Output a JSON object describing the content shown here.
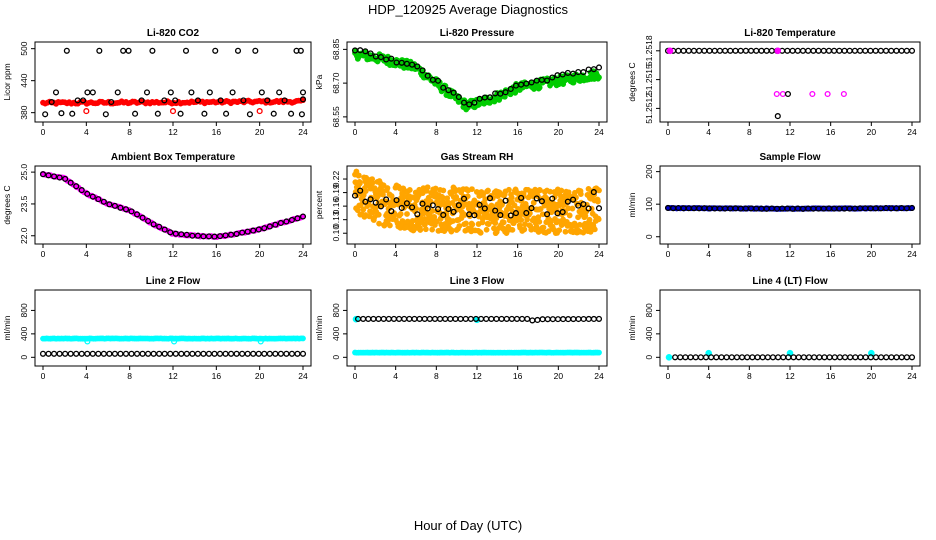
{
  "title": "HDP_120925  Average Diagnostics",
  "x_axis_label": "Hour of Day (UTC)",
  "colors": {
    "black": "#000000",
    "red": "#ff0000",
    "magenta": "#ff00ff",
    "green": "#00cc00",
    "orange": "#ffa500",
    "blue": "#0000cc",
    "cyan": "#00ffff"
  },
  "chart_data": [
    {
      "type": "scatter",
      "title": "Li-820 CO2",
      "ylabel": "Licor ppm",
      "xlim": [
        0,
        24
      ],
      "ylim": [
        370,
        505
      ],
      "xticks": [
        0,
        4,
        8,
        12,
        16,
        20,
        24
      ],
      "yticks": [
        380,
        440,
        500
      ],
      "series": [
        {
          "color": "red",
          "filled": true,
          "dense": true,
          "x_start": 0,
          "x_end": 24,
          "count": 120,
          "base": 400,
          "noise": 2.5,
          "trend": [
            [
              0,
              398
            ],
            [
              24,
              401
            ]
          ]
        },
        {
          "color": "red",
          "filled": false,
          "points": [
            [
              4,
              383
            ],
            [
              12,
              383
            ],
            [
              20,
              383
            ]
          ]
        },
        {
          "color": "black",
          "filled": false,
          "points": [
            [
              0.2,
              377
            ],
            [
              0.8,
              400
            ],
            [
              1.2,
              418
            ],
            [
              1.7,
              379
            ],
            [
              2.2,
              496
            ],
            [
              2.7,
              378
            ],
            [
              3.2,
              403
            ],
            [
              3.7,
              403
            ],
            [
              4.1,
              418
            ],
            [
              4.6,
              418
            ],
            [
              5.2,
              496
            ],
            [
              5.8,
              377
            ],
            [
              6.3,
              400
            ],
            [
              6.9,
              418
            ],
            [
              7.4,
              496
            ],
            [
              7.9,
              496
            ],
            [
              8.5,
              378
            ],
            [
              9.1,
              403
            ],
            [
              9.6,
              418
            ],
            [
              10.1,
              496
            ],
            [
              10.6,
              378
            ],
            [
              11.2,
              403
            ],
            [
              11.8,
              418
            ],
            [
              12.2,
              403
            ],
            [
              12.7,
              378
            ],
            [
              13.2,
              496
            ],
            [
              13.7,
              418
            ],
            [
              14.3,
              403
            ],
            [
              14.9,
              378
            ],
            [
              15.4,
              418
            ],
            [
              15.9,
              496
            ],
            [
              16.4,
              403
            ],
            [
              16.9,
              378
            ],
            [
              17.5,
              418
            ],
            [
              18.0,
              496
            ],
            [
              18.5,
              403
            ],
            [
              19.1,
              377
            ],
            [
              19.6,
              496
            ],
            [
              20.2,
              418
            ],
            [
              20.7,
              403
            ],
            [
              21.3,
              378
            ],
            [
              21.8,
              418
            ],
            [
              22.3,
              403
            ],
            [
              22.9,
              378
            ],
            [
              23.4,
              496
            ],
            [
              23.8,
              496
            ],
            [
              24.0,
              418
            ],
            [
              24.0,
              405
            ],
            [
              23.9,
              377
            ]
          ]
        }
      ]
    },
    {
      "type": "scatter",
      "title": "Li-820 Pressure",
      "ylabel": "kPa",
      "xlim": [
        0,
        24
      ],
      "ylim": [
        68.545,
        68.865
      ],
      "xticks": [
        0,
        4,
        8,
        12,
        16,
        20,
        24
      ],
      "yticks": [
        68.55,
        68.7,
        68.85
      ],
      "ytick_labels": [
        "68.55",
        "68.70",
        "68.85"
      ],
      "series": [
        {
          "color": "green",
          "filled": true,
          "dense": true,
          "x_start": 0,
          "x_end": 24,
          "count": 260,
          "noise": 0.02,
          "trend": [
            [
              0,
              68.83
            ],
            [
              3,
              68.805
            ],
            [
              6,
              68.77
            ],
            [
              8,
              68.7
            ],
            [
              10,
              68.63
            ],
            [
              11,
              68.6
            ],
            [
              12,
              68.61
            ],
            [
              14,
              68.64
            ],
            [
              16,
              68.68
            ],
            [
              20,
              68.71
            ],
            [
              24,
              68.74
            ]
          ]
        },
        {
          "color": "black",
          "filled": false,
          "x_start": 0,
          "x_end": 24,
          "count": 48,
          "noise": 0.008,
          "trend": [
            [
              0,
              68.85
            ],
            [
              3,
              68.81
            ],
            [
              6,
              68.78
            ],
            [
              8,
              68.71
            ],
            [
              10,
              68.64
            ],
            [
              11,
              68.61
            ],
            [
              12,
              68.62
            ],
            [
              14,
              68.65
            ],
            [
              16,
              68.69
            ],
            [
              20,
              68.73
            ],
            [
              24,
              68.77
            ]
          ]
        }
      ]
    },
    {
      "type": "scatter",
      "title": "Li-820 Temperature",
      "ylabel": "degrees C",
      "xlim": [
        0,
        24
      ],
      "ylim": [
        51.2511,
        51.25185
      ],
      "xticks": [
        0,
        4,
        8,
        12,
        16,
        20,
        24
      ],
      "yticks": [
        51.2512,
        51.2515,
        51.2518
      ],
      "ytick_labels": [
        "51.2512",
        "51.2515",
        "51.2518"
      ],
      "series": [
        {
          "color": "magenta",
          "filled": false,
          "points": [
            [
              10.7,
              51.25135
            ],
            [
              11.3,
              51.25135
            ],
            [
              14.2,
              51.25135
            ],
            [
              15.7,
              51.25135
            ],
            [
              17.3,
              51.25135
            ]
          ]
        },
        {
          "color": "black",
          "filled": false,
          "points": [
            [
              11.8,
              51.25135
            ],
            [
              10.8,
              51.25112
            ]
          ]
        },
        {
          "color": "black",
          "filled": false,
          "x_start": 0,
          "x_end": 24,
          "count": 48,
          "noise": 0,
          "trend": [
            [
              0,
              51.2518
            ],
            [
              24,
              51.2518
            ]
          ]
        },
        {
          "color": "magenta",
          "filled": true,
          "points": [
            [
              0.2,
              51.2518
            ],
            [
              10.8,
              51.2518
            ]
          ]
        }
      ]
    },
    {
      "type": "scatter",
      "title": "Ambient Box Temperature",
      "ylabel": "degrees C",
      "xlim": [
        0,
        24
      ],
      "ylim": [
        21.8,
        25.1
      ],
      "xticks": [
        0,
        4,
        8,
        12,
        16,
        20,
        24
      ],
      "yticks": [
        22.0,
        23.5,
        25.0
      ],
      "ytick_labels": [
        "22.0",
        "23.5",
        "25.0"
      ],
      "series": [
        {
          "color": "magenta",
          "filled": true,
          "dense": true,
          "x_start": 0,
          "x_end": 24,
          "count": 140,
          "noise": 0.03,
          "trend": [
            [
              0,
              24.9
            ],
            [
              2,
              24.7
            ],
            [
              4,
              24.0
            ],
            [
              6,
              23.5
            ],
            [
              8,
              23.2
            ],
            [
              10,
              22.6
            ],
            [
              12,
              22.1
            ],
            [
              14,
              22.0
            ],
            [
              16,
              21.95
            ],
            [
              18,
              22.1
            ],
            [
              20,
              22.3
            ],
            [
              24,
              22.9
            ]
          ]
        },
        {
          "color": "black",
          "filled": false,
          "x_start": 0,
          "x_end": 24,
          "count": 48,
          "noise": 0.01,
          "trend": [
            [
              0,
              24.9
            ],
            [
              2,
              24.7
            ],
            [
              4,
              24.0
            ],
            [
              6,
              23.5
            ],
            [
              8,
              23.2
            ],
            [
              10,
              22.6
            ],
            [
              12,
              22.1
            ],
            [
              14,
              22.0
            ],
            [
              16,
              21.95
            ],
            [
              18,
              22.1
            ],
            [
              20,
              22.3
            ],
            [
              24,
              22.9
            ]
          ]
        }
      ]
    },
    {
      "type": "scatter",
      "title": "Gas Stream RH",
      "ylabel": "percent",
      "xlim": [
        0,
        24
      ],
      "ylim": [
        0.085,
        0.24
      ],
      "xticks": [
        0,
        4,
        8,
        12,
        16,
        20,
        24
      ],
      "yticks": [
        0.1,
        0.13,
        0.16,
        0.19,
        0.22
      ],
      "ytick_labels": [
        "0.10",
        "0.13",
        "0.16",
        "0.19",
        "0.22"
      ],
      "series": [
        {
          "color": "orange",
          "filled": true,
          "dense": true,
          "x_start": 0,
          "x_end": 24,
          "count": 700,
          "noise": 0.05,
          "trend": [
            [
              0,
              0.19
            ],
            [
              2,
              0.17
            ],
            [
              6,
              0.155
            ],
            [
              12,
              0.15
            ],
            [
              18,
              0.15
            ],
            [
              24,
              0.15
            ]
          ]
        },
        {
          "color": "black",
          "filled": false,
          "x_start": 0,
          "x_end": 24,
          "count": 48,
          "noise": 0.022,
          "trend": [
            [
              0,
              0.2
            ],
            [
              2,
              0.17
            ],
            [
              6,
              0.16
            ],
            [
              12,
              0.155
            ],
            [
              18,
              0.16
            ],
            [
              24,
              0.17
            ]
          ]
        }
      ]
    },
    {
      "type": "scatter",
      "title": "Sample Flow",
      "ylabel": "ml/min",
      "xlim": [
        0,
        24
      ],
      "ylim": [
        -10,
        205
      ],
      "xticks": [
        0,
        4,
        8,
        12,
        16,
        20,
        24
      ],
      "yticks": [
        0,
        100,
        200
      ],
      "series": [
        {
          "color": "blue",
          "filled": true,
          "dense": true,
          "x_start": 0,
          "x_end": 24,
          "count": 140,
          "noise": 1,
          "trend": [
            [
              0,
              88
            ],
            [
              12,
              86
            ],
            [
              24,
              88
            ]
          ]
        },
        {
          "color": "black",
          "filled": false,
          "x_start": 0,
          "x_end": 24,
          "count": 48,
          "noise": 0.5,
          "trend": [
            [
              0,
              88
            ],
            [
              12,
              86
            ],
            [
              24,
              88
            ]
          ]
        }
      ]
    },
    {
      "type": "scatter",
      "title": "Line 2 Flow",
      "ylabel": "ml/min",
      "xlim": [
        0,
        24
      ],
      "ylim": [
        -80,
        1080
      ],
      "xticks": [
        0,
        4,
        8,
        12,
        16,
        20,
        24
      ],
      "yticks": [
        0,
        400,
        800
      ],
      "series": [
        {
          "color": "cyan",
          "filled": true,
          "dense": true,
          "x_start": 0,
          "x_end": 24,
          "count": 140,
          "noise": 3,
          "trend": [
            [
              0,
              320
            ],
            [
              24,
              320
            ]
          ]
        },
        {
          "color": "cyan",
          "filled": false,
          "points": [
            [
              4.1,
              270
            ],
            [
              12.1,
              270
            ],
            [
              20.1,
              270
            ]
          ]
        },
        {
          "color": "black",
          "filled": false,
          "x_start": 0,
          "x_end": 24,
          "count": 48,
          "noise": 0,
          "trend": [
            [
              0,
              60
            ],
            [
              24,
              60
            ]
          ]
        }
      ]
    },
    {
      "type": "scatter",
      "title": "Line 3 Flow",
      "ylabel": "ml/min",
      "xlim": [
        0,
        24
      ],
      "ylim": [
        -80,
        1080
      ],
      "xticks": [
        0,
        4,
        8,
        12,
        16,
        20,
        24
      ],
      "yticks": [
        0,
        400,
        800
      ],
      "series": [
        {
          "color": "cyan",
          "filled": true,
          "dense": true,
          "x_start": 0,
          "x_end": 24,
          "count": 140,
          "noise": 2,
          "trend": [
            [
              0,
              80
            ],
            [
              24,
              80
            ]
          ]
        },
        {
          "color": "cyan",
          "filled": true,
          "points": [
            [
              0.1,
              650
            ],
            [
              12.0,
              640
            ]
          ]
        },
        {
          "color": "black",
          "filled": false,
          "x_start": 0.3,
          "x_end": 24,
          "count": 48,
          "noise": 0,
          "trend": [
            [
              0,
              655
            ],
            [
              17,
              655
            ],
            [
              17.6,
              620
            ],
            [
              18.2,
              650
            ],
            [
              24,
              655
            ]
          ]
        }
      ]
    },
    {
      "type": "scatter",
      "title": "Line 4 (LT) Flow",
      "ylabel": "ml/min",
      "xlim": [
        0,
        24
      ],
      "ylim": [
        -80,
        1080
      ],
      "xticks": [
        0,
        4,
        8,
        12,
        16,
        20,
        24
      ],
      "yticks": [
        0,
        400,
        800
      ],
      "series": [
        {
          "color": "cyan",
          "filled": true,
          "points": [
            [
              0.1,
              0
            ],
            [
              4.0,
              70
            ],
            [
              12.0,
              70
            ],
            [
              20.0,
              70
            ]
          ]
        },
        {
          "color": "black",
          "filled": false,
          "x_start": 0.7,
          "x_end": 24,
          "count": 47,
          "noise": 0,
          "trend": [
            [
              0,
              0
            ],
            [
              24,
              0
            ]
          ]
        }
      ]
    }
  ]
}
